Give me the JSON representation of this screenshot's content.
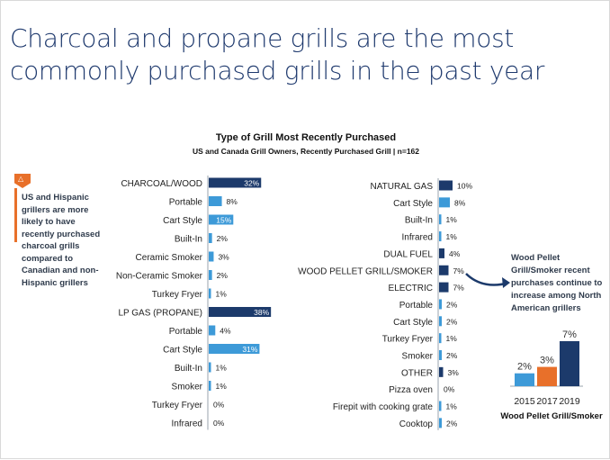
{
  "headline": "Charcoal and propane grills are the most commonly purchased grills in the past year",
  "note": {
    "icon": "warning-flag-icon",
    "text": "US and Hispanic grillers are more likely to have recently purchased charcoal grills compared to Canadian and non-Hispanic grillers"
  },
  "callout": {
    "text": "Wood Pellet Grill/Smoker recent purchases continue to increase among North American grillers"
  },
  "colors": {
    "headline": "#1f3a6e",
    "navy_bar": "#1c3a6b",
    "light_bar": "#3d9ad8",
    "orange": "#e8702a",
    "mini_2015": "#3d9ad8",
    "mini_2017": "#e8702a",
    "mini_2019": "#1c3a6b"
  },
  "chart_data": [
    {
      "type": "bar",
      "orientation": "horizontal",
      "title": "Type of Grill Most Recently Purchased",
      "subtitle": "US and Canada Grill Owners, Recently Purchased Grill | n=162",
      "xlim": [
        0,
        40
      ],
      "categories": [
        "CHARCOAL/WOOD",
        "Portable",
        "Cart Style",
        "Built-In",
        "Ceramic Smoker",
        "Non-Ceramic Smoker",
        "Turkey Fryer",
        "LP GAS (PROPANE)",
        "Portable",
        "Cart Style",
        "Built-In",
        "Smoker",
        "Turkey Fryer",
        "Infrared"
      ],
      "values": [
        32,
        8,
        15,
        2,
        3,
        2,
        1,
        38,
        4,
        31,
        1,
        1,
        0,
        0
      ],
      "labels": [
        "32%",
        "8%",
        "15%",
        "2%",
        "3%",
        "2%",
        "1%",
        "38%",
        "4%",
        "31%",
        "1%",
        "1%",
        "0%",
        "0%"
      ],
      "is_total": [
        true,
        false,
        false,
        false,
        false,
        false,
        false,
        true,
        false,
        false,
        false,
        false,
        false,
        false
      ]
    },
    {
      "type": "bar",
      "orientation": "horizontal",
      "xlim": [
        0,
        40
      ],
      "categories": [
        "NATURAL GAS",
        "Cart Style",
        "Built-In",
        "Infrared",
        "DUAL FUEL",
        "WOOD PELLET GRILL/SMOKER",
        "ELECTRIC",
        "Portable",
        "Cart Style",
        "Turkey Fryer",
        "Smoker",
        "OTHER",
        "Pizza oven",
        "Firepit with cooking grate",
        "Cooktop"
      ],
      "values": [
        10,
        8,
        1,
        1,
        4,
        7,
        7,
        2,
        2,
        1,
        2,
        3,
        0,
        1,
        2
      ],
      "labels": [
        "10%",
        "8%",
        "1%",
        "1%",
        "4%",
        "7%",
        "7%",
        "2%",
        "2%",
        "1%",
        "2%",
        "3%",
        "0%",
        "1%",
        "2%"
      ],
      "is_total": [
        true,
        false,
        false,
        false,
        true,
        true,
        true,
        false,
        false,
        false,
        false,
        true,
        false,
        false,
        false
      ]
    },
    {
      "type": "bar",
      "title": "Wood Pellet Grill/Smoker",
      "categories": [
        "2015",
        "2017",
        "2019"
      ],
      "values": [
        2,
        3,
        7
      ],
      "labels": [
        "2%",
        "3%",
        "7%"
      ],
      "ylim": [
        0,
        7
      ]
    }
  ]
}
